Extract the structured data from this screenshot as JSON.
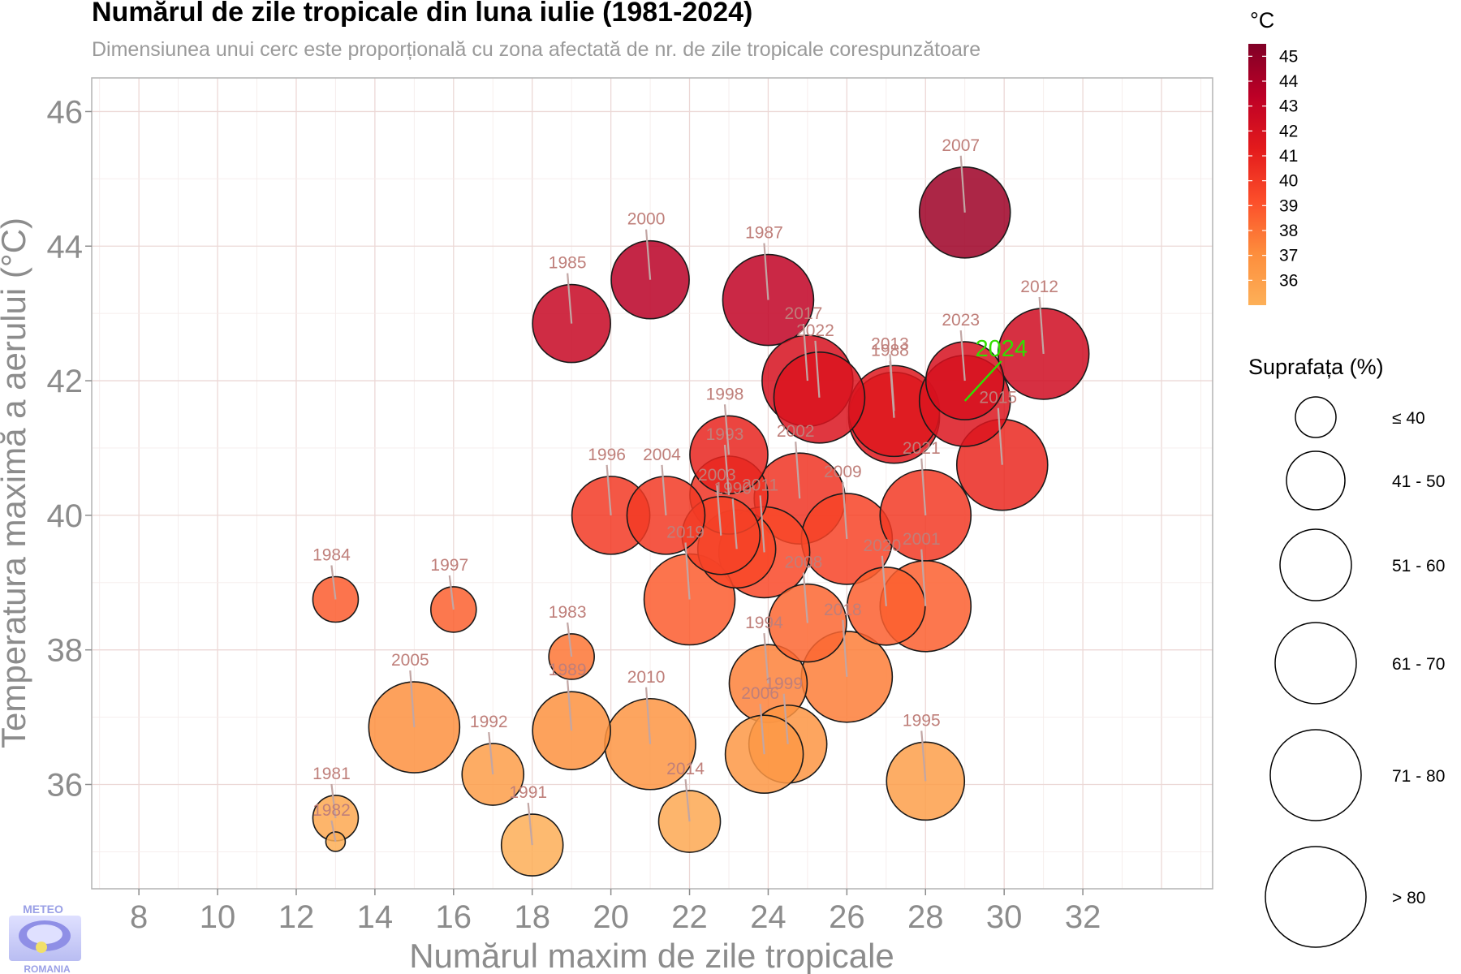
{
  "chart_data": {
    "type": "scatter",
    "title": "Numărul de zile tropicale din luna iulie (1981-2024)",
    "subtitle": "Dimensiunea unui cerc este proporțională cu zona afectată de nr. de zile tropicale corespunzătoare",
    "xlabel": "Numărul maxim de zile tropicale",
    "ylabel": "Temperatura maximă a aerului (°C)",
    "xlim": [
      6.8,
      35.3
    ],
    "ylim": [
      34.45,
      46.5
    ],
    "xticks": [
      "8",
      "10",
      "12",
      "14",
      "16",
      "18",
      "20",
      "22",
      "24",
      "26",
      "28",
      "30",
      "32"
    ],
    "yticks": [
      "36",
      "38",
      "40",
      "42",
      "44",
      "46"
    ],
    "grid": true,
    "highlight_year": "2024",
    "points": [
      {
        "year": "1981",
        "x": 13,
        "y": 35.5,
        "area_class": 1
      },
      {
        "year": "1982",
        "x": 13,
        "y": 35.15,
        "area_class": 0
      },
      {
        "year": "1983",
        "x": 19,
        "y": 37.9,
        "area_class": 1
      },
      {
        "year": "1984",
        "x": 13,
        "y": 38.75,
        "area_class": 1
      },
      {
        "year": "1985",
        "x": 19,
        "y": 42.85,
        "area_class": 3
      },
      {
        "year": "1987",
        "x": 24,
        "y": 43.2,
        "area_class": 4
      },
      {
        "year": "1988",
        "x": 27.2,
        "y": 41.45,
        "area_class": 4
      },
      {
        "year": "1989",
        "x": 19,
        "y": 36.8,
        "area_class": 3
      },
      {
        "year": "1990",
        "x": 23.2,
        "y": 39.5,
        "area_class": 3
      },
      {
        "year": "1991",
        "x": 18,
        "y": 35.1,
        "area_class": 2
      },
      {
        "year": "1992",
        "x": 17,
        "y": 36.15,
        "area_class": 2
      },
      {
        "year": "1993",
        "x": 23,
        "y": 40.3,
        "area_class": 3
      },
      {
        "year": "1994",
        "x": 24,
        "y": 37.5,
        "area_class": 3
      },
      {
        "year": "1995",
        "x": 28,
        "y": 36.05,
        "area_class": 3
      },
      {
        "year": "1996",
        "x": 20,
        "y": 40,
        "area_class": 3
      },
      {
        "year": "1997",
        "x": 16,
        "y": 38.6,
        "area_class": 1
      },
      {
        "year": "1998",
        "x": 23,
        "y": 40.9,
        "area_class": 3
      },
      {
        "year": "1999",
        "x": 24.5,
        "y": 36.6,
        "area_class": 3
      },
      {
        "year": "2000",
        "x": 21,
        "y": 43.5,
        "area_class": 3
      },
      {
        "year": "2001",
        "x": 28,
        "y": 38.65,
        "area_class": 4
      },
      {
        "year": "2002",
        "x": 24.8,
        "y": 40.25,
        "area_class": 4
      },
      {
        "year": "2003",
        "x": 22.8,
        "y": 39.7,
        "area_class": 3
      },
      {
        "year": "2004",
        "x": 21.4,
        "y": 40,
        "area_class": 3
      },
      {
        "year": "2005",
        "x": 15,
        "y": 36.85,
        "area_class": 4
      },
      {
        "year": "2006",
        "x": 23.9,
        "y": 36.45,
        "area_class": 3
      },
      {
        "year": "2007",
        "x": 29,
        "y": 44.5,
        "area_class": 4
      },
      {
        "year": "2008",
        "x": 25,
        "y": 38.4,
        "area_class": 3
      },
      {
        "year": "2009",
        "x": 26,
        "y": 39.65,
        "area_class": 4
      },
      {
        "year": "2010",
        "x": 21,
        "y": 36.6,
        "area_class": 4
      },
      {
        "year": "2011",
        "x": 23.9,
        "y": 39.45,
        "area_class": 4
      },
      {
        "year": "2012",
        "x": 31,
        "y": 42.4,
        "area_class": 4
      },
      {
        "year": "2013",
        "x": 27.2,
        "y": 41.55,
        "area_class": 4
      },
      {
        "year": "2014",
        "x": 22,
        "y": 35.45,
        "area_class": 2
      },
      {
        "year": "2015",
        "x": 29.95,
        "y": 40.75,
        "area_class": 4
      },
      {
        "year": "2017",
        "x": 25,
        "y": 42,
        "area_class": 4
      },
      {
        "year": "2018",
        "x": 26,
        "y": 37.6,
        "area_class": 4
      },
      {
        "year": "2019",
        "x": 22,
        "y": 38.75,
        "area_class": 4
      },
      {
        "year": "2020",
        "x": 27,
        "y": 38.65,
        "area_class": 3
      },
      {
        "year": "2021",
        "x": 28,
        "y": 40,
        "area_class": 4
      },
      {
        "year": "2022",
        "x": 25.3,
        "y": 41.75,
        "area_class": 4
      },
      {
        "year": "2023",
        "x": 29,
        "y": 42,
        "area_class": 3
      },
      {
        "year": "2024",
        "x": 29,
        "y": 41.7,
        "area_class": 4
      }
    ],
    "color_legend": {
      "title": "°C",
      "values": [
        "45",
        "44",
        "43",
        "42",
        "41",
        "40",
        "39",
        "38",
        "37",
        "36"
      ],
      "min": 35,
      "max": 45.5,
      "colors": [
        "#fdb058",
        "#fd8d3c",
        "#fc4e2a",
        "#e31a1c",
        "#bd0026",
        "#800026"
      ]
    },
    "size_legend": {
      "title": "Suprafața (%)",
      "classes": [
        "≤ 40",
        "41 - 50",
        "51 - 60",
        "61 - 70",
        "71 - 80",
        "> 80"
      ]
    }
  },
  "logo": {
    "top": "METEO",
    "bottom": "ROMANIA"
  }
}
